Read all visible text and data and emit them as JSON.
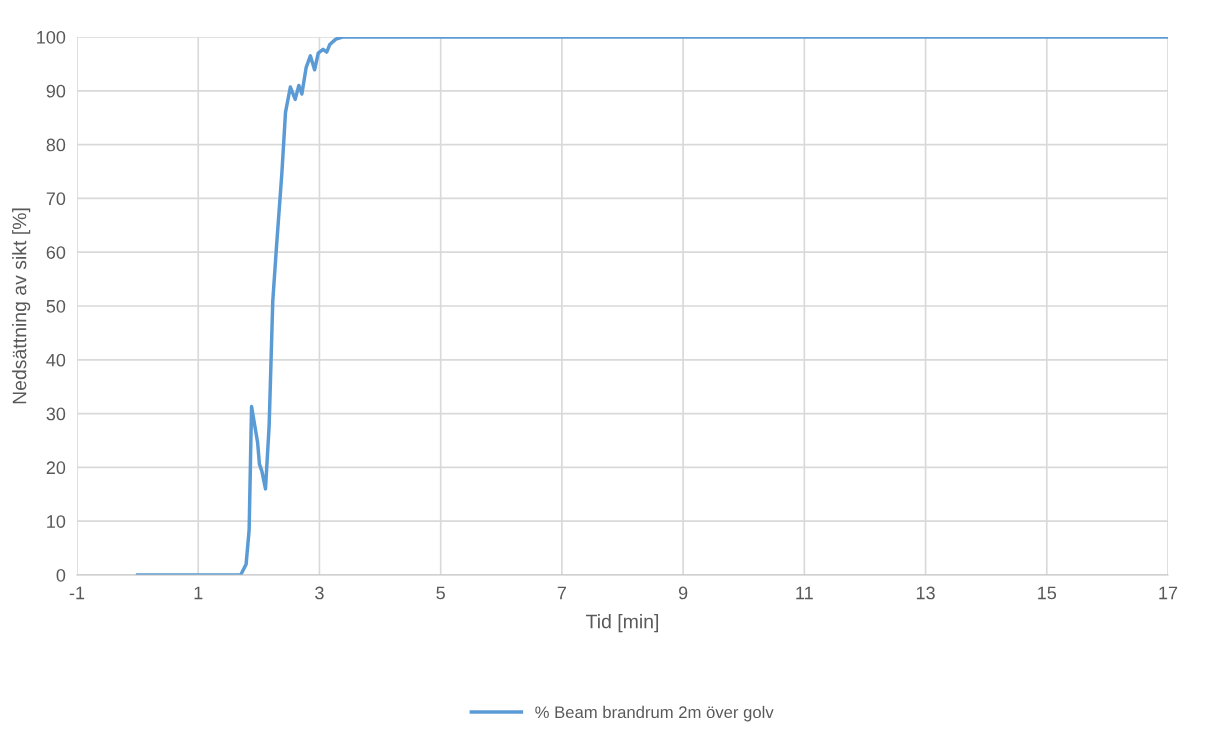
{
  "chart_data": {
    "type": "line",
    "xlabel": "Tid [min]",
    "ylabel": "Nedsättning av sikt [%]",
    "xlim": [
      -1,
      17
    ],
    "xticks": [
      -1,
      1,
      3,
      5,
      7,
      9,
      11,
      13,
      15,
      17
    ],
    "ylim": [
      0,
      100
    ],
    "yticks": [
      0,
      10,
      20,
      30,
      40,
      50,
      60,
      70,
      80,
      90,
      100
    ],
    "grid": true,
    "legend": "bottom",
    "marker": "none",
    "line_style": "solid",
    "series": [
      {
        "name": "% Beam brandrum 2m över golv",
        "color": "#5b9bd5",
        "x": [
          0,
          1.7,
          1.79,
          1.84,
          1.88,
          1.94,
          1.98,
          2.01,
          2.05,
          2.11,
          2.17,
          2.23,
          2.29,
          2.38,
          2.44,
          2.52,
          2.6,
          2.66,
          2.71,
          2.78,
          2.85,
          2.92,
          2.98,
          3.06,
          3.12,
          3.17,
          3.27,
          3.38,
          17
        ],
        "values": [
          0,
          0,
          2,
          8.4,
          31.3,
          27.3,
          24.6,
          20.6,
          19.3,
          16,
          27.7,
          50.9,
          60.8,
          74.7,
          86,
          90.7,
          88.4,
          91,
          89.4,
          94.3,
          96.5,
          93.9,
          97,
          97.7,
          97.2,
          98.6,
          99.6,
          100,
          100
        ]
      }
    ]
  }
}
